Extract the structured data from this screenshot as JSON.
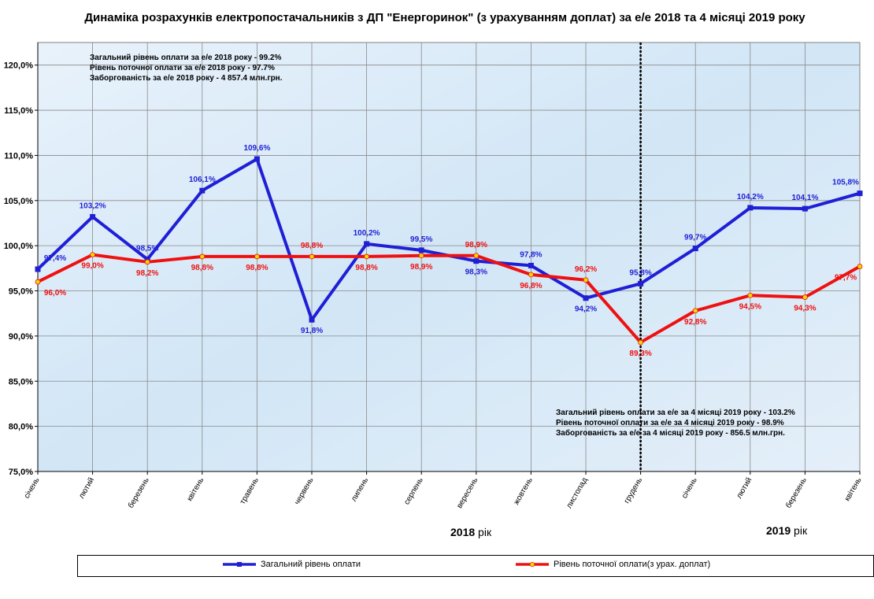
{
  "chart_data": {
    "type": "line",
    "title": "Динаміка розрахунків електропостачальників з ДП \"Енергоринок\" (з урахуванням  доплат) за е/е 2018 та 4 місяці 2019 року",
    "categories": [
      "січень",
      "лютий",
      "березень",
      "квітень",
      "травень",
      "червень",
      "липень",
      "серпень",
      "вересень",
      "жовтень",
      "листопад",
      "грудень",
      "січень",
      "лютий",
      "березень",
      "квітень"
    ],
    "series": [
      {
        "name": "Загальний  рівень  оплати",
        "color": "#1f1fd6",
        "values": [
          97.4,
          103.2,
          98.5,
          106.1,
          109.6,
          91.8,
          100.2,
          99.5,
          98.3,
          97.8,
          94.2,
          95.8,
          99.7,
          104.2,
          104.1,
          105.8
        ],
        "labels": [
          "97,4%",
          "103,2%",
          "98,5%",
          "106,1%",
          "109,6%",
          "91,8%",
          "100,2%",
          "99,5%",
          "98,3%",
          "97,8%",
          "94,2%",
          "95,8%",
          "99,7%",
          "104,2%",
          "104,1%",
          "105,8%"
        ]
      },
      {
        "name": "Рівень  поточної  оплати(з  урах. доплат)",
        "color": "#ee1111",
        "values": [
          96.0,
          99.0,
          98.2,
          98.8,
          98.8,
          98.8,
          98.8,
          98.9,
          98.9,
          96.8,
          96.2,
          89.3,
          92.8,
          94.5,
          94.3,
          97.7
        ],
        "labels": [
          "96,0%",
          "99,0%",
          "98,2%",
          "98,8%",
          "98,8%",
          "98,8%",
          "98,8%",
          "98,9%",
          "98,9%",
          "96,8%",
          "96,2%",
          "89,3%",
          "92,8%",
          "94,5%",
          "94,3%",
          "97,7%"
        ]
      }
    ],
    "ylim": [
      75,
      122.5
    ],
    "yticks": [
      75,
      80,
      85,
      90,
      95,
      100,
      105,
      110,
      115,
      120
    ],
    "ytick_labels": [
      "75,0%",
      "80,0%",
      "85,0%",
      "90,0%",
      "95,0%",
      "100,0%",
      "105,0%",
      "110,0%",
      "115,0%",
      "120,0%"
    ],
    "grid": true,
    "divider_after_category": "грудень",
    "legend_position": "bottom",
    "year_labels": [
      {
        "year": "2018",
        "suffix": " рік"
      },
      {
        "year": "2019",
        "suffix": " рік"
      }
    ],
    "annotations": [
      [
        "Загальний рівень оплати за е/е 2018 року - 99.2%",
        "Рівень поточної оплати за е/е 2018 року - 97.7%",
        "Заборгованість за е/е 2018 року - 4 857.4 млн.грн."
      ],
      [
        "Загальний рівень оплати за е/е за 4 місяці 2019 року - 103.2%",
        "Рівень поточної оплати за е/е за 4 місяці 2019 року - 98.9%",
        "Заборгованість за е/е за 4 місяці 2019 року - 856.5 млн.грн."
      ]
    ]
  }
}
